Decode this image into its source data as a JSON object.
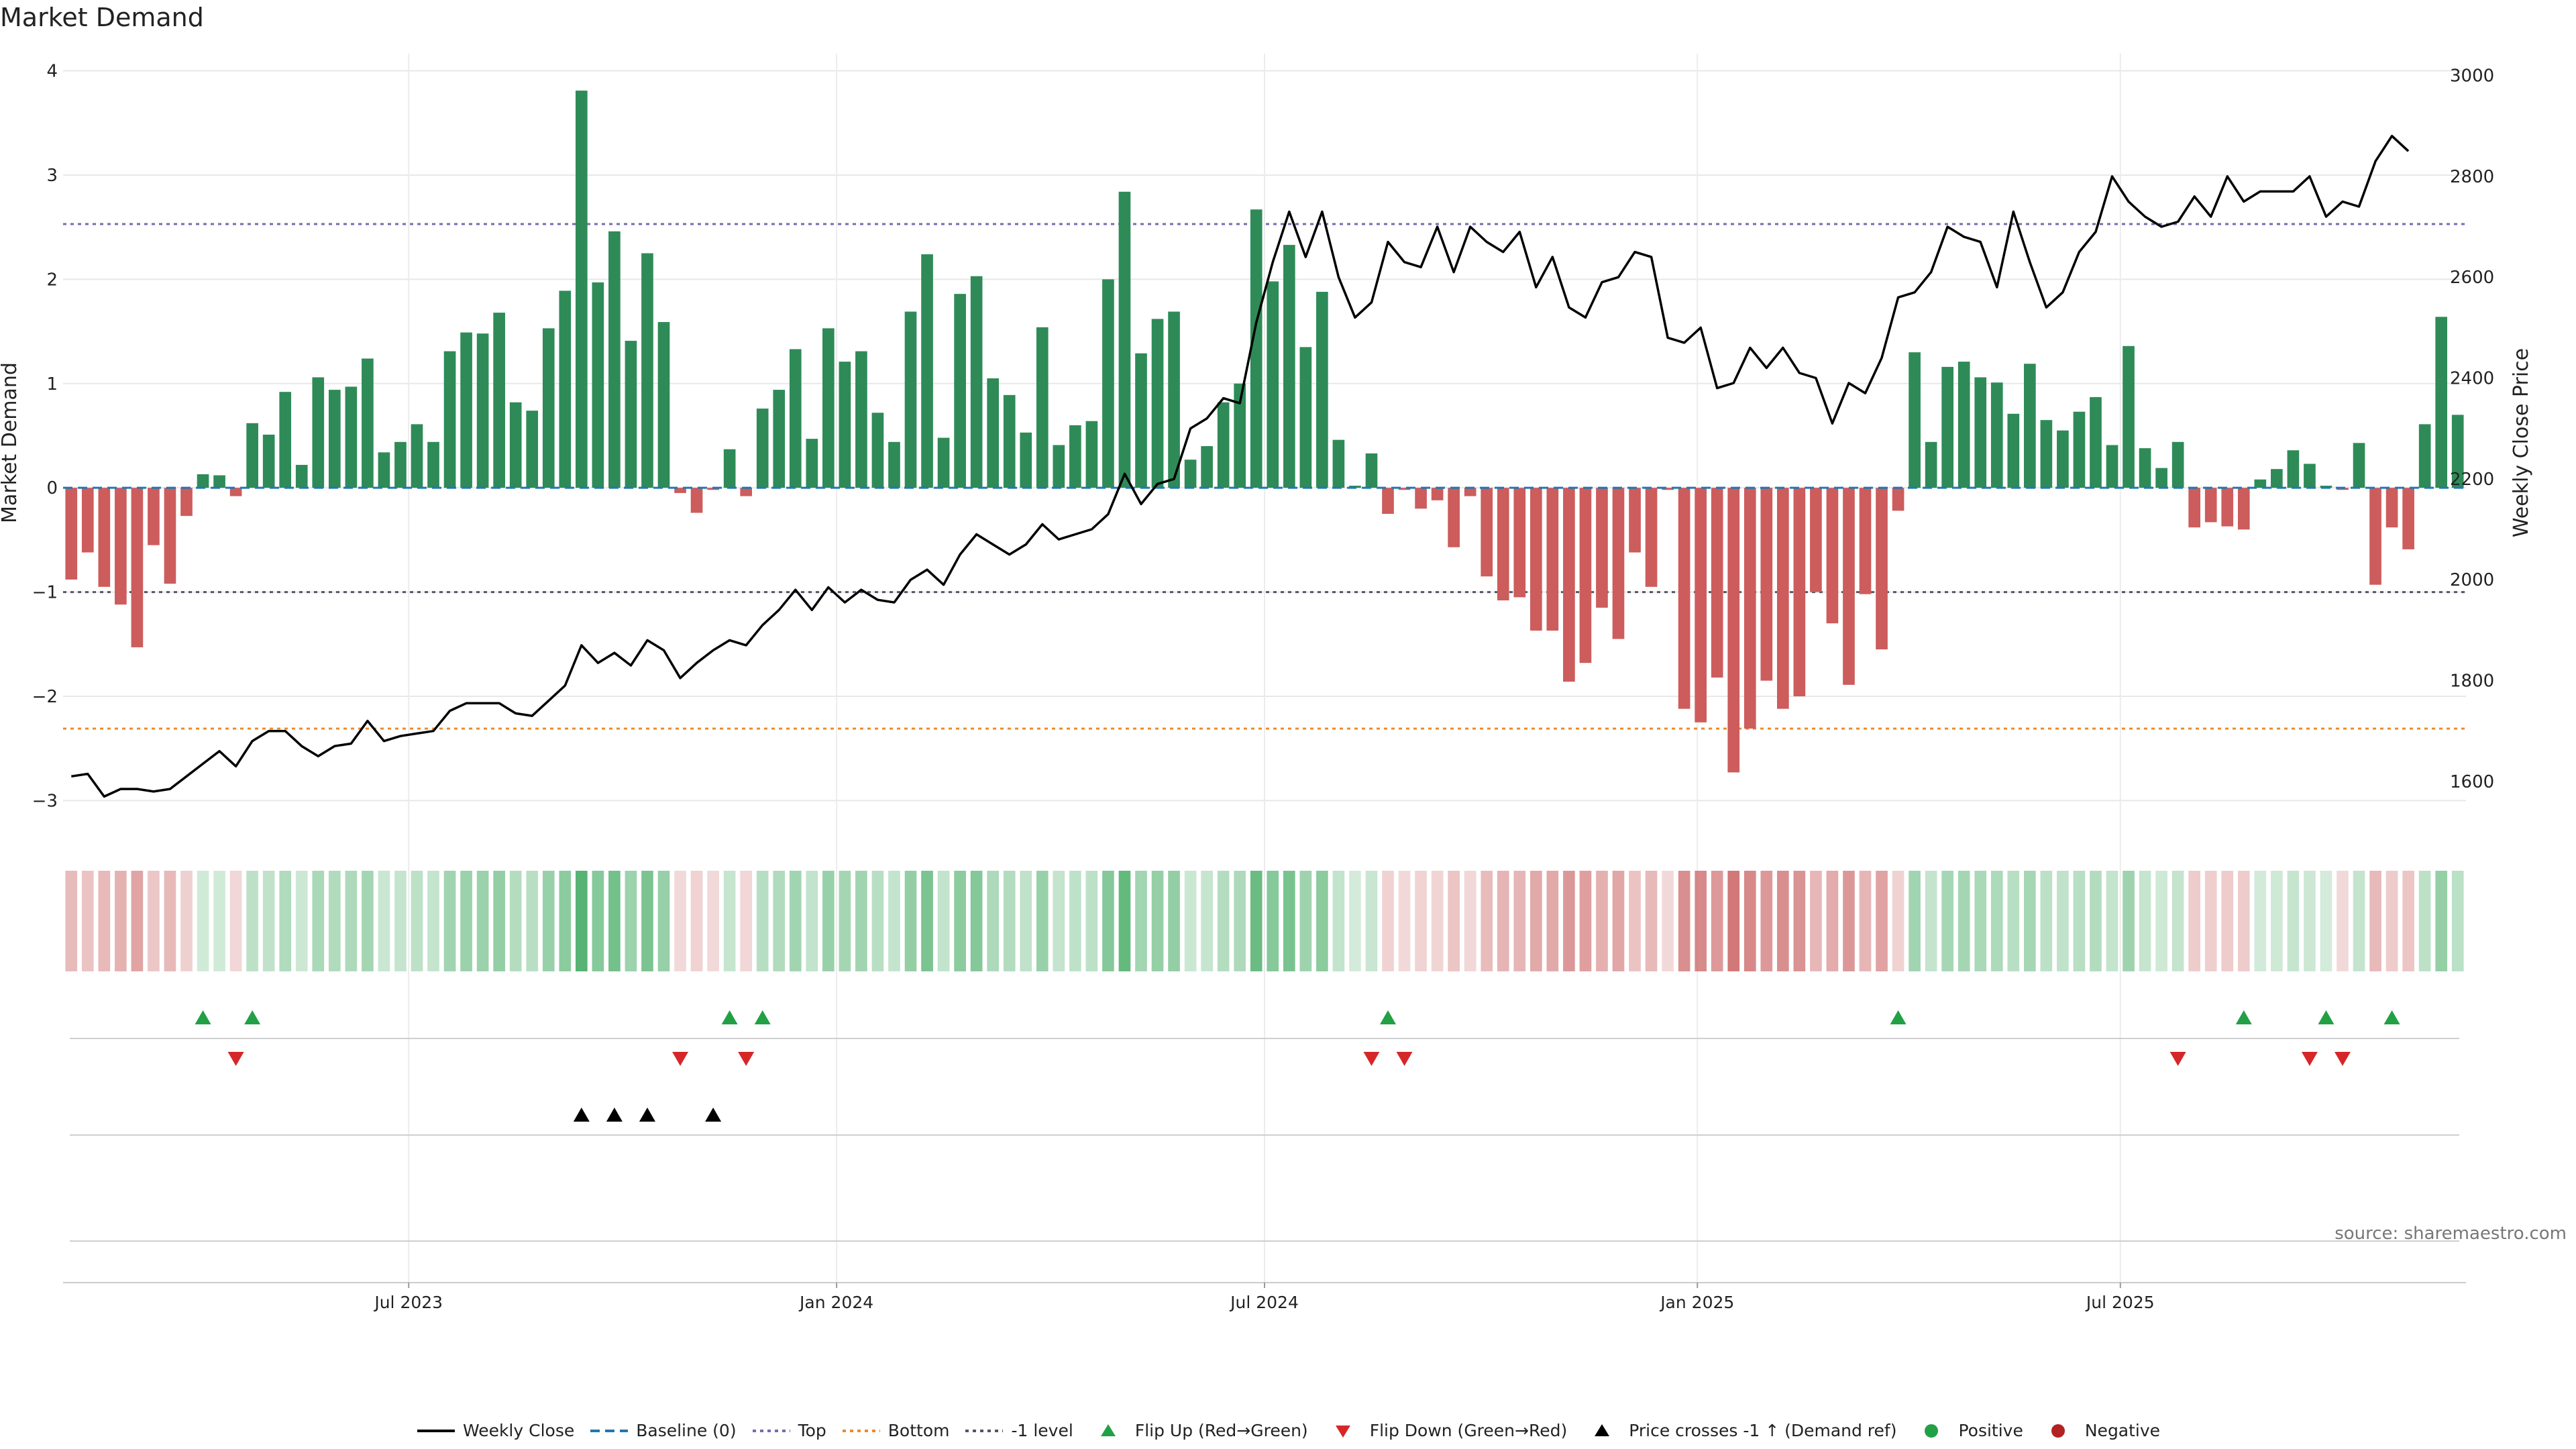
{
  "title": "Market Demand",
  "source": "source: sharemaestro.com",
  "colors": {
    "positive": "#2e8b57",
    "negative": "#cd5c5c",
    "line": "#000000",
    "top": "#7b68b0",
    "bottom": "#f08a24",
    "minus1": "#555566",
    "baseline": "#1f77b4",
    "flip_up": "#22a045",
    "flip_down": "#d62728"
  },
  "legend": [
    {
      "label": "Weekly Close",
      "kind": "line",
      "color": "#000000"
    },
    {
      "label": "Baseline (0)",
      "kind": "dash",
      "color": "#1f77b4"
    },
    {
      "label": "Top",
      "kind": "dot",
      "color": "#7b68b0"
    },
    {
      "label": "Bottom",
      "kind": "dot",
      "color": "#f08a24"
    },
    {
      "label": "-1 level",
      "kind": "dot",
      "color": "#555566"
    },
    {
      "label": "Flip Up (Red→Green)",
      "kind": "tri-up",
      "color": "#22a045"
    },
    {
      "label": "Flip Down (Green→Red)",
      "kind": "tri-down",
      "color": "#d62728"
    },
    {
      "label": "Price crosses -1 ↑ (Demand ref)",
      "kind": "tri-up",
      "color": "#000000"
    },
    {
      "label": "Positive",
      "kind": "circle",
      "color": "#22a045"
    },
    {
      "label": "Negative",
      "kind": "circle",
      "color": "#b22222"
    }
  ],
  "chart_data": {
    "type": "bar",
    "title": "Market Demand",
    "ylabel": "Market Demand",
    "y2label": "Weekly Close Price",
    "ylim": [
      -3.3,
      4.1
    ],
    "y_ticks": [
      4,
      3,
      2,
      1,
      0,
      -1,
      -2,
      -3
    ],
    "y_tick_labels": [
      "4",
      "3",
      "2",
      "1",
      "0",
      "−1",
      "−2",
      "−3"
    ],
    "y2lim": [
      1500,
      3030
    ],
    "y2_ticks": [
      3000,
      2800,
      2600,
      2400,
      2200,
      2000,
      1800,
      1600
    ],
    "y2_tick_labels": [
      "3000",
      "2800",
      "2600",
      "2400",
      "2200",
      "2000",
      "1800",
      "1600"
    ],
    "x_ticks": [
      {
        "label": "Jul 2023",
        "week": 21
      },
      {
        "label": "Jan 2024",
        "week": 47
      },
      {
        "label": "Jul 2024",
        "week": 73
      },
      {
        "label": "Jan 2025",
        "week": 99.3
      },
      {
        "label": "Jul 2025",
        "week": 125
      }
    ],
    "reference_lines": {
      "baseline": 0,
      "top": 2.53,
      "bottom": -2.31,
      "minus1": -1
    },
    "demand": [
      -0.88,
      -0.62,
      -0.95,
      -1.12,
      -1.53,
      -0.55,
      -0.92,
      -0.27,
      0.13,
      0.12,
      -0.08,
      0.62,
      0.51,
      0.92,
      0.22,
      1.06,
      0.94,
      0.97,
      1.24,
      0.34,
      0.44,
      0.61,
      0.44,
      1.31,
      1.49,
      1.48,
      1.68,
      0.82,
      0.74,
      1.53,
      1.89,
      3.81,
      1.97,
      2.46,
      1.41,
      2.25,
      1.59,
      -0.05,
      -0.24,
      -0.02,
      0.37,
      -0.08,
      0.76,
      0.94,
      1.33,
      0.47,
      1.53,
      1.21,
      1.31,
      0.72,
      0.44,
      1.69,
      2.24,
      0.48,
      1.86,
      2.03,
      1.05,
      0.89,
      0.53,
      1.54,
      0.41,
      0.6,
      0.64,
      2.0,
      2.84,
      1.29,
      1.62,
      1.69,
      0.27,
      0.4,
      0.82,
      1.0,
      2.67,
      1.98,
      2.33,
      1.35,
      1.88,
      0.46,
      0.02,
      0.33,
      -0.25,
      -0.02,
      -0.2,
      -0.12,
      -0.57,
      -0.08,
      -0.85,
      -1.08,
      -1.05,
      -1.37,
      -1.37,
      -1.86,
      -1.68,
      -1.15,
      -1.45,
      -0.62,
      -0.95,
      -0.02,
      -2.12,
      -2.25,
      -1.82,
      -2.73,
      -2.31,
      -1.85,
      -2.12,
      -2.0,
      -1.0,
      -1.3,
      -1.89,
      -1.02,
      -1.55,
      -0.22,
      1.3,
      0.44,
      1.16,
      1.21,
      1.06,
      1.01,
      0.71,
      1.19,
      0.65,
      0.55,
      0.73,
      0.87,
      0.41,
      1.36,
      0.38,
      0.19,
      0.44,
      -0.38,
      -0.33,
      -0.37,
      -0.4,
      0.08,
      0.18,
      0.36,
      0.23,
      0.02,
      -0.02,
      0.43,
      -0.93,
      -0.38,
      -0.59,
      0.61,
      1.64,
      0.7
    ],
    "weekly_close": [
      1610,
      1615,
      1570,
      1585,
      1585,
      1580,
      1585,
      1610,
      1635,
      1660,
      1630,
      1680,
      1700,
      1700,
      1670,
      1650,
      1670,
      1675,
      1720,
      1680,
      1690,
      1695,
      1700,
      1740,
      1755,
      1755,
      1755,
      1735,
      1730,
      1760,
      1790,
      1870,
      1835,
      1855,
      1830,
      1880,
      1860,
      1805,
      1835,
      1860,
      1880,
      1870,
      1910,
      1940,
      1980,
      1940,
      1985,
      1955,
      1980,
      1960,
      1955,
      2000,
      2020,
      1990,
      2050,
      2090,
      2070,
      2050,
      2070,
      2110,
      2080,
      2090,
      2100,
      2130,
      2210,
      2150,
      2190,
      2200,
      2300,
      2320,
      2360,
      2350,
      2510,
      2630,
      2730,
      2640,
      2730,
      2600,
      2520,
      2550,
      2670,
      2630,
      2620,
      2700,
      2610,
      2700,
      2670,
      2650,
      2690,
      2580,
      2640,
      2540,
      2520,
      2590,
      2600,
      2650,
      2640,
      2480,
      2470,
      2500,
      2380,
      2390,
      2460,
      2420,
      2460,
      2410,
      2400,
      2310,
      2390,
      2370,
      2440,
      2560,
      2570,
      2610,
      2700,
      2680,
      2670,
      2580,
      2730,
      2630,
      2540,
      2570,
      2650,
      2690,
      2800,
      2750,
      2720,
      2700,
      2710,
      2760,
      2720,
      2800,
      2750,
      2770,
      2770,
      2770,
      2800,
      2720,
      2750,
      2740,
      2830,
      2880,
      2850
    ]
  },
  "signals": {
    "flip_up_weeks": [
      8,
      11,
      40,
      42,
      80,
      111,
      132,
      137,
      141
    ],
    "flip_down_weeks": [
      10,
      37,
      41,
      79,
      81,
      128,
      136,
      138
    ],
    "price_cross_weeks": [
      31,
      33,
      35,
      39
    ]
  }
}
